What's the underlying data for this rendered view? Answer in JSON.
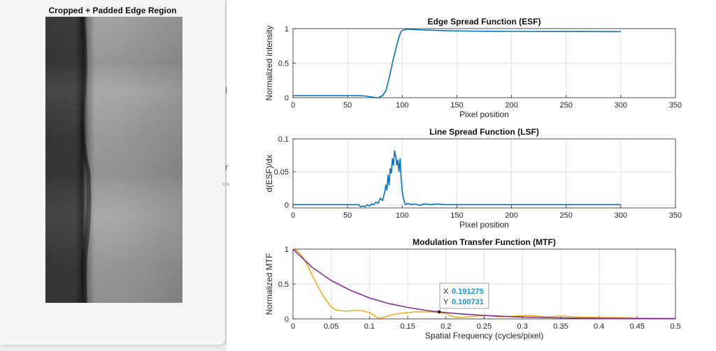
{
  "left_panel": {
    "title": "Cropped + Padded Edge Region"
  },
  "background_glyphs": [
    "l",
    "r"
  ],
  "datatip": {
    "x_label": "X",
    "x_value": "0.191275",
    "y_label": "Y",
    "y_value": "0.100731"
  },
  "chart_data": [
    {
      "type": "line",
      "title": "Edge Spread Function (ESF)",
      "xlabel": "Pixel position",
      "ylabel": "Normalized intensity",
      "xlim": [
        0,
        350
      ],
      "ylim": [
        0,
        1
      ],
      "xticks": [
        0,
        50,
        100,
        150,
        200,
        250,
        300,
        350
      ],
      "yticks": [
        0,
        0.5,
        1
      ],
      "ytick_labels": [
        "0",
        "0.5",
        "1"
      ],
      "grid": true,
      "series": [
        {
          "color": "#0072BD",
          "x": [
            0,
            20,
            40,
            60,
            66,
            70,
            74,
            78,
            82,
            85,
            88,
            91,
            94,
            97,
            99,
            101,
            104,
            108,
            112,
            120,
            130,
            140,
            160,
            180,
            200,
            230,
            260,
            280,
            300
          ],
          "y": [
            0.03,
            0.03,
            0.03,
            0.03,
            0.025,
            0.015,
            0.005,
            0.0,
            0.03,
            0.1,
            0.28,
            0.5,
            0.7,
            0.88,
            0.96,
            0.98,
            0.99,
            0.99,
            0.985,
            0.98,
            0.975,
            0.97,
            0.965,
            0.962,
            0.96,
            0.958,
            0.958,
            0.957,
            0.957
          ]
        }
      ]
    },
    {
      "type": "line",
      "title": "Line Spread Function (LSF)",
      "xlabel": "Pixel position",
      "ylabel": "d(ESF)/dx",
      "xlim": [
        0,
        350
      ],
      "ylim": [
        -0.005,
        0.1
      ],
      "xticks": [
        0,
        50,
        100,
        150,
        200,
        250,
        300,
        350
      ],
      "yticks": [
        0,
        0.05,
        0.1
      ],
      "ytick_labels": [
        "0",
        "0.05",
        "0.1"
      ],
      "grid": true,
      "series": [
        {
          "color": "#0072BD",
          "x": [
            0,
            55,
            60,
            62,
            64,
            66,
            68,
            70,
            72,
            74,
            76,
            78,
            80,
            82,
            84,
            85,
            86,
            87,
            88,
            89,
            90,
            91,
            92,
            93,
            94,
            95,
            96,
            97,
            98,
            99,
            100,
            101,
            102,
            103,
            105,
            108,
            112,
            116,
            120,
            126,
            132,
            140,
            150,
            160,
            170,
            180,
            200,
            250,
            300
          ],
          "y": [
            0,
            0,
            0.0,
            -0.003,
            -0.002,
            -0.003,
            0.0,
            -0.002,
            0.001,
            0.0,
            0.004,
            0.002,
            0.01,
            0.006,
            0.02,
            0.03,
            0.022,
            0.045,
            0.03,
            0.055,
            0.048,
            0.07,
            0.06,
            0.082,
            0.074,
            0.06,
            0.068,
            0.05,
            0.07,
            0.04,
            0.02,
            0.01,
            0.004,
            0.0,
            0.002,
            0.0,
            0.001,
            -0.001,
            0.001,
            0.0,
            0.001,
            0.0,
            0.0,
            0.0,
            0.0,
            0.0,
            0.0,
            0.0,
            0.0
          ]
        }
      ]
    },
    {
      "type": "line",
      "title": "Modulation Transfer Function (MTF)",
      "xlabel": "Spatial Frequency (cycles/pixel)",
      "ylabel": "Normalized MTF",
      "xlim": [
        0,
        0.5
      ],
      "ylim": [
        0,
        1
      ],
      "xticks": [
        0,
        0.05,
        0.1,
        0.15,
        0.2,
        0.25,
        0.3,
        0.35,
        0.4,
        0.45,
        0.5
      ],
      "yticks": [
        0,
        0.5,
        1
      ],
      "ytick_labels": [
        "0",
        "0.5",
        "1"
      ],
      "grid": true,
      "series": [
        {
          "color": "#EDB120",
          "x": [
            0,
            0.005,
            0.01,
            0.015,
            0.02,
            0.03,
            0.04,
            0.05,
            0.055,
            0.06,
            0.07,
            0.08,
            0.09,
            0.1,
            0.105,
            0.11,
            0.115,
            0.12,
            0.13,
            0.14,
            0.15,
            0.16,
            0.17,
            0.18,
            0.19,
            0.2,
            0.205,
            0.21,
            0.22,
            0.23,
            0.24,
            0.25,
            0.27,
            0.29,
            0.31,
            0.33,
            0.35,
            0.37,
            0.4,
            0.43,
            0.46,
            0.5
          ],
          "y": [
            1.0,
            0.98,
            0.93,
            0.85,
            0.74,
            0.52,
            0.32,
            0.17,
            0.13,
            0.12,
            0.11,
            0.12,
            0.12,
            0.09,
            0.06,
            0.02,
            0.01,
            0.03,
            0.06,
            0.08,
            0.09,
            0.1,
            0.1,
            0.1,
            0.09,
            0.08,
            0.05,
            0.03,
            0.02,
            0.03,
            0.04,
            0.05,
            0.03,
            0.04,
            0.05,
            0.03,
            0.04,
            0.03,
            0.02,
            0.02,
            0.01,
            0.01
          ]
        },
        {
          "color": "#7E2F8E",
          "x": [
            0,
            0.025,
            0.05,
            0.075,
            0.1,
            0.125,
            0.15,
            0.175,
            0.2,
            0.225,
            0.25,
            0.275,
            0.3,
            0.325,
            0.35,
            0.375,
            0.4,
            0.425,
            0.45,
            0.475,
            0.5
          ],
          "y": [
            1.0,
            0.74,
            0.55,
            0.41,
            0.3,
            0.22,
            0.165,
            0.12,
            0.09,
            0.067,
            0.05,
            0.037,
            0.027,
            0.02,
            0.015,
            0.011,
            0.008,
            0.006,
            0.0045,
            0.0033,
            0.0025
          ]
        }
      ],
      "datatip_point": {
        "x": 0.191275,
        "y": 0.100731
      }
    }
  ]
}
